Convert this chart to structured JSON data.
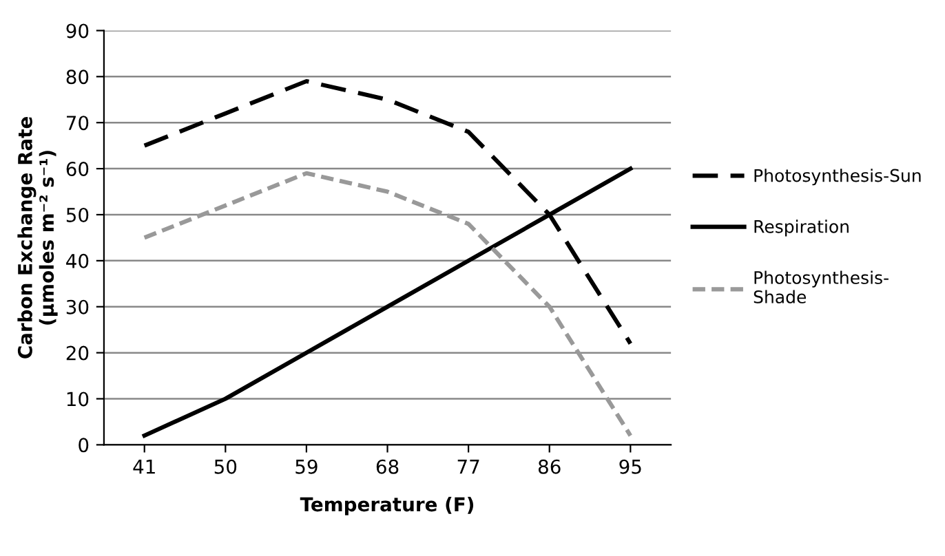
{
  "chart_data": {
    "type": "line",
    "xlabel": "Temperature (F)",
    "ylabel": "Carbon Exchange Rate\n(µmoles m⁻² s⁻¹)",
    "categories": [
      "41",
      "50",
      "59",
      "68",
      "77",
      "86",
      "95"
    ],
    "series": [
      {
        "name": "Photosynthesis-Sun",
        "color": "#000000",
        "line_style": "dashed",
        "values": [
          65,
          72,
          79,
          75,
          68,
          50,
          22
        ]
      },
      {
        "name": "Respiration",
        "color": "#000000",
        "line_style": "solid",
        "values": [
          2,
          10,
          20,
          30,
          40,
          50,
          60
        ]
      },
      {
        "name": "Photosynthesis-\nShade",
        "color": "#999999",
        "line_style": "dashed",
        "values": [
          45,
          52,
          59,
          55,
          48,
          30,
          2
        ]
      }
    ],
    "ylim": [
      0,
      90
    ],
    "yticks": [
      0,
      10,
      20,
      30,
      40,
      50,
      60,
      70,
      80,
      90
    ],
    "grid": "y",
    "legend": "right",
    "marker": "none"
  }
}
